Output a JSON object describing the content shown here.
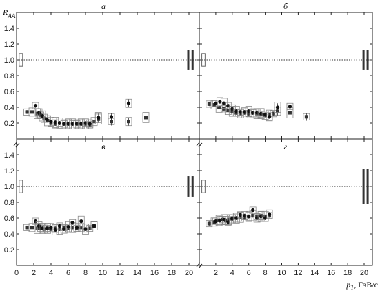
{
  "figure": {
    "ylabel_main": "R",
    "ylabel_sub": "AA",
    "xlabel_main": "p",
    "xlabel_sub": "T",
    "xlabel_unit": ", ГэВ/c",
    "reference_line": 1.0,
    "colors": {
      "filled": "#333333",
      "open": "#888888",
      "axis": "#222222"
    }
  },
  "chart_data": [
    {
      "type": "scatter",
      "panel": "а",
      "xlim": [
        0,
        21
      ],
      "ylim": [
        0,
        1.6
      ],
      "xticks": [
        "0",
        "2",
        "4",
        "6",
        "8",
        "10",
        "12",
        "14",
        "16",
        "18",
        "20"
      ],
      "yticks": [
        "0.2",
        "0.4",
        "0.6",
        "0.8",
        "1.0",
        "1.2",
        "1.4"
      ],
      "series": [
        {
          "marker": "square",
          "x": [
            1.2,
            1.8,
            2.4,
            2.8,
            3.2,
            3.6,
            4.0,
            4.5,
            5.0,
            5.5,
            6.0,
            6.5,
            7.0,
            7.5,
            8.0,
            8.5,
            9.0,
            9.5,
            11.0,
            13.0,
            15.0
          ],
          "y": [
            0.34,
            0.34,
            0.32,
            0.3,
            0.26,
            0.23,
            0.2,
            0.19,
            0.2,
            0.19,
            0.19,
            0.19,
            0.19,
            0.19,
            0.19,
            0.18,
            0.22,
            0.25,
            0.22,
            0.22,
            0.27
          ]
        },
        {
          "marker": "circle",
          "x": [
            2.2,
            2.6,
            3.0,
            3.5,
            4.0,
            4.5,
            5.0,
            5.5,
            6.0,
            6.5,
            7.0,
            7.5,
            8.0,
            8.5,
            9.5,
            11.0,
            13.0
          ],
          "y": [
            0.42,
            0.33,
            0.29,
            0.25,
            0.22,
            0.21,
            0.2,
            0.19,
            0.19,
            0.19,
            0.19,
            0.19,
            0.2,
            0.19,
            0.27,
            0.28,
            0.45
          ]
        }
      ]
    },
    {
      "type": "scatter",
      "panel": "б",
      "xlim": [
        0,
        21
      ],
      "ylim": [
        0,
        1.6
      ],
      "xticks": [
        "0",
        "2",
        "4",
        "6",
        "8",
        "10",
        "12",
        "14",
        "16",
        "18",
        "20"
      ],
      "yticks": [
        "0.2",
        "0.4",
        "0.6",
        "0.8",
        "1.0",
        "1.2",
        "1.4"
      ],
      "series": [
        {
          "marker": "square",
          "x": [
            1.2,
            1.8,
            2.4,
            3.0,
            3.5,
            4.0,
            4.5,
            5.0,
            5.5,
            6.0,
            6.5,
            7.0,
            7.5,
            8.0,
            8.5,
            9.0,
            9.5,
            11.0,
            13.0
          ],
          "y": [
            0.44,
            0.43,
            0.4,
            0.38,
            0.36,
            0.35,
            0.33,
            0.32,
            0.33,
            0.32,
            0.33,
            0.32,
            0.31,
            0.3,
            0.3,
            0.32,
            0.35,
            0.33,
            0.28
          ]
        },
        {
          "marker": "circle",
          "x": [
            2.0,
            2.5,
            3.0,
            3.5,
            4.0,
            4.5,
            5.0,
            5.5,
            6.0,
            6.5,
            7.0,
            7.5,
            8.0,
            8.5,
            9.5,
            11.0
          ],
          "y": [
            0.45,
            0.47,
            0.45,
            0.42,
            0.38,
            0.35,
            0.34,
            0.34,
            0.35,
            0.33,
            0.33,
            0.32,
            0.31,
            0.28,
            0.4,
            0.41
          ]
        }
      ]
    },
    {
      "type": "scatter",
      "panel": "в",
      "xlim": [
        0,
        21
      ],
      "ylim": [
        0,
        1.6
      ],
      "xticks": [
        "0",
        "2",
        "4",
        "6",
        "8",
        "10",
        "12",
        "14",
        "16",
        "18",
        "20"
      ],
      "yticks": [
        "0.2",
        "0.4",
        "0.6",
        "0.8",
        "1.0",
        "1.2",
        "1.4"
      ],
      "series": [
        {
          "marker": "square",
          "x": [
            1.2,
            1.8,
            2.4,
            2.8,
            3.2,
            3.6,
            4.0,
            4.5,
            5.0,
            5.5,
            6.0,
            6.5,
            7.0,
            7.5,
            8.0,
            8.5,
            9.0
          ],
          "y": [
            0.48,
            0.48,
            0.47,
            0.47,
            0.46,
            0.47,
            0.46,
            0.47,
            0.46,
            0.48,
            0.47,
            0.48,
            0.47,
            0.48,
            0.46,
            0.47,
            0.5
          ]
        },
        {
          "marker": "circle",
          "x": [
            2.2,
            2.6,
            3.0,
            3.5,
            4.0,
            4.5,
            5.0,
            5.5,
            6.0,
            6.5,
            7.0,
            7.5,
            8.0,
            9.0
          ],
          "y": [
            0.56,
            0.5,
            0.47,
            0.47,
            0.48,
            0.45,
            0.5,
            0.46,
            0.49,
            0.54,
            0.48,
            0.56,
            0.46,
            0.5
          ]
        }
      ]
    },
    {
      "type": "scatter",
      "panel": "г",
      "xlim": [
        0,
        21
      ],
      "ylim": [
        0,
        1.6
      ],
      "xticks": [
        "0",
        "2",
        "4",
        "6",
        "8",
        "10",
        "12",
        "14",
        "16",
        "18",
        "20"
      ],
      "yticks": [
        "0.2",
        "0.4",
        "0.6",
        "0.8",
        "1.0",
        "1.2",
        "1.4"
      ],
      "series": [
        {
          "marker": "square",
          "x": [
            1.2,
            1.8,
            2.4,
            2.8,
            3.2,
            3.6,
            4.0,
            4.5,
            5.0,
            5.5,
            6.0,
            6.5,
            7.0,
            7.5,
            8.0,
            8.5
          ],
          "y": [
            0.53,
            0.55,
            0.57,
            0.58,
            0.57,
            0.58,
            0.6,
            0.6,
            0.61,
            0.6,
            0.62,
            0.63,
            0.62,
            0.63,
            0.62,
            0.63
          ]
        },
        {
          "marker": "circle",
          "x": [
            2.0,
            2.5,
            3.0,
            3.5,
            4.0,
            4.5,
            5.0,
            5.5,
            6.0,
            6.5,
            7.0,
            7.5,
            8.0,
            8.5
          ],
          "y": [
            0.56,
            0.57,
            0.58,
            0.55,
            0.59,
            0.6,
            0.64,
            0.63,
            0.62,
            0.7,
            0.6,
            0.62,
            0.6,
            0.65
          ]
        }
      ]
    }
  ]
}
